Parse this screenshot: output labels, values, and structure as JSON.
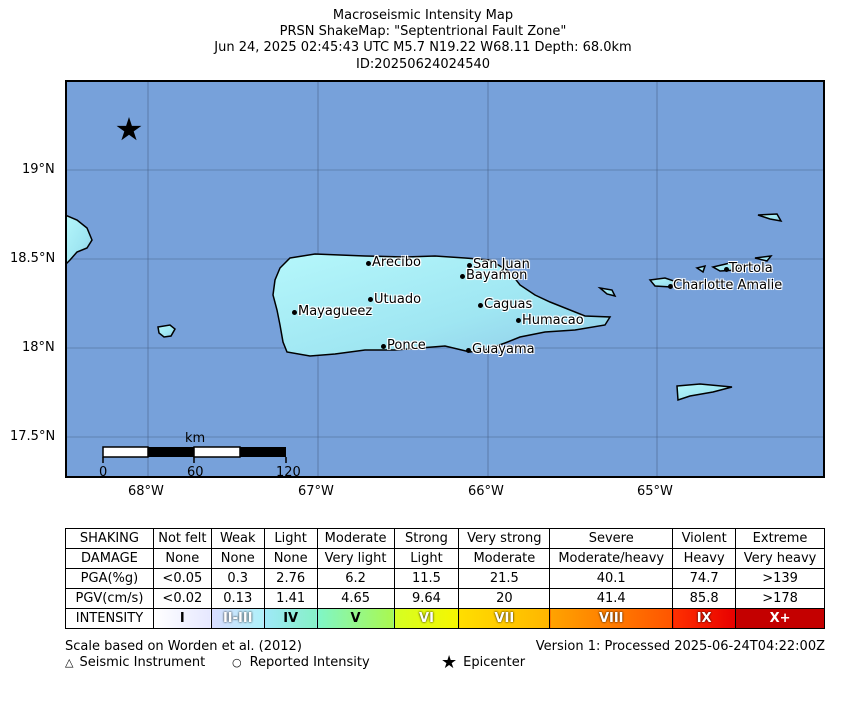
{
  "header": {
    "line1": "Macroseismic Intensity Map",
    "line2": "PRSN ShakeMap: \"Septentrional Fault Zone\"",
    "line3": "Jun 24, 2025 02:45:43 UTC M5.7 N19.22 W68.11 Depth: 68.0km",
    "line4": "ID:20250624024540"
  },
  "map": {
    "lat_ticks": [
      "19°N",
      "18.5°N",
      "18°N",
      "17.5°N"
    ],
    "lon_ticks": [
      "68°W",
      "67°W",
      "66°W",
      "65°W"
    ],
    "cities": [
      {
        "name": "Arecibo"
      },
      {
        "name": "San Juan"
      },
      {
        "name": "Bayamon"
      },
      {
        "name": "Utuado"
      },
      {
        "name": "Caguas"
      },
      {
        "name": "Mayagueez"
      },
      {
        "name": "Humacao"
      },
      {
        "name": "Ponce"
      },
      {
        "name": "Guayama"
      },
      {
        "name": "Tortola"
      },
      {
        "name": "Charlotte Amalie"
      }
    ],
    "scalebar": {
      "unit": "km",
      "labels": [
        "0",
        "60",
        "120"
      ]
    },
    "colors": {
      "ocean": "#77a1da",
      "land": "#a6f1f7"
    }
  },
  "legend": {
    "rows": [
      {
        "label": "SHAKING",
        "cells": [
          "Not felt",
          "Weak",
          "Light",
          "Moderate",
          "Strong",
          "Very strong",
          "Severe",
          "Violent",
          "Extreme"
        ]
      },
      {
        "label": "DAMAGE",
        "cells": [
          "None",
          "None",
          "None",
          "Very light",
          "Light",
          "Moderate",
          "Moderate/heavy",
          "Heavy",
          "Very heavy"
        ]
      },
      {
        "label": "PGA(%g)",
        "cells": [
          "<0.05",
          "0.3",
          "2.76",
          "6.2",
          "11.5",
          "21.5",
          "40.1",
          "74.7",
          ">139"
        ]
      },
      {
        "label": "PGV(cm/s)",
        "cells": [
          "<0.02",
          "0.13",
          "1.41",
          "4.65",
          "9.64",
          "20",
          "41.4",
          "85.8",
          ">178"
        ]
      }
    ],
    "intensity_label": "INTENSITY",
    "intensity": [
      "I",
      "II-III",
      "IV",
      "V",
      "VI",
      "VII",
      "VIII",
      "IX",
      "X+"
    ]
  },
  "footer": {
    "scale_note": "Scale based on Worden et al. (2012)",
    "version": "Version 1: Processed 2025-06-24T04:22:00Z",
    "instrument": "Seismic Instrument",
    "reported": "Reported Intensity",
    "epicenter": "Epicenter"
  }
}
